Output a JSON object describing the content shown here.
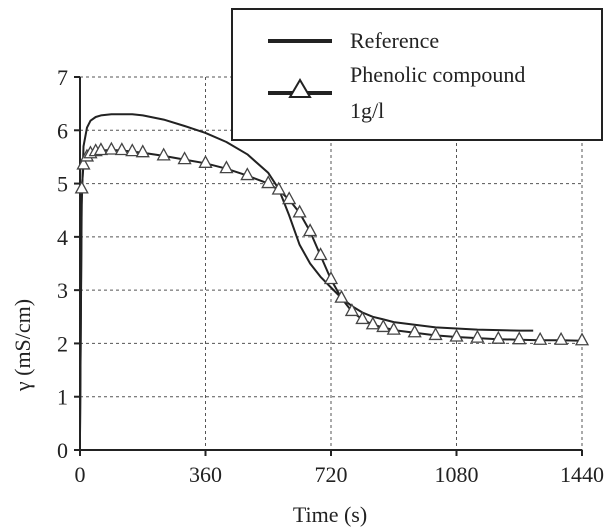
{
  "chart_data": {
    "type": "line",
    "xlabel": "Time (s)",
    "ylabel": "γ (mS/cm)",
    "xlim": [
      0,
      1440
    ],
    "ylim": [
      0,
      7
    ],
    "xticks": [
      0,
      360,
      720,
      1080,
      1440
    ],
    "yticks": [
      0,
      1,
      2,
      3,
      4,
      5,
      6,
      7
    ],
    "grid": true,
    "legend_position": "top-right",
    "legend_lines": [
      "Reference",
      "Phenolic compound",
      "1g/l"
    ],
    "series": [
      {
        "name": "Reference",
        "style": "solid",
        "x": [
          0,
          5,
          10,
          20,
          30,
          45,
          60,
          90,
          120,
          150,
          180,
          240,
          300,
          360,
          420,
          480,
          540,
          570,
          600,
          630,
          660,
          690,
          720,
          750,
          780,
          810,
          840,
          870,
          900,
          960,
          1020,
          1080,
          1140,
          1200,
          1260,
          1300
        ],
        "y": [
          0.3,
          4.6,
          5.7,
          6.05,
          6.18,
          6.25,
          6.28,
          6.3,
          6.3,
          6.3,
          6.28,
          6.2,
          6.08,
          5.95,
          5.78,
          5.55,
          5.2,
          4.9,
          4.4,
          3.85,
          3.5,
          3.25,
          3.05,
          2.85,
          2.7,
          2.58,
          2.5,
          2.45,
          2.4,
          2.35,
          2.3,
          2.28,
          2.26,
          2.25,
          2.24,
          2.24
        ]
      },
      {
        "name": "Phenolic compound 1g/l",
        "style": "line-triangles",
        "x": [
          0,
          5,
          10,
          20,
          30,
          45,
          60,
          90,
          120,
          150,
          180,
          240,
          300,
          360,
          420,
          480,
          540,
          570,
          600,
          630,
          660,
          690,
          720,
          750,
          780,
          810,
          840,
          870,
          900,
          960,
          1020,
          1080,
          1140,
          1200,
          1260,
          1320,
          1380,
          1440
        ],
        "y": [
          0.3,
          4.9,
          5.35,
          5.5,
          5.56,
          5.6,
          5.62,
          5.63,
          5.62,
          5.6,
          5.58,
          5.52,
          5.45,
          5.38,
          5.28,
          5.15,
          5.0,
          4.88,
          4.7,
          4.45,
          4.1,
          3.65,
          3.2,
          2.85,
          2.6,
          2.45,
          2.35,
          2.3,
          2.25,
          2.2,
          2.15,
          2.12,
          2.1,
          2.08,
          2.07,
          2.06,
          2.06,
          2.05
        ]
      }
    ]
  }
}
